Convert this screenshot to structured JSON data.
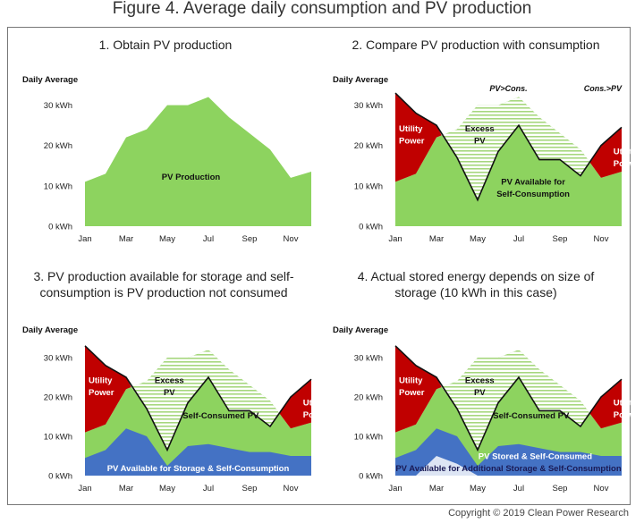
{
  "figure_title": "Figure 4. Average daily consumption and PV production",
  "copyright": "Copyright © 2019 Clean Power Research",
  "colors": {
    "pv": "#8dd35f",
    "utility": "#c00000",
    "excess_stripe": "#a6d77e",
    "storage": "#4472c4",
    "stored_light": "#dde5f4",
    "consumption_line": "#111111"
  },
  "chart_data": [
    {
      "type": "area",
      "title": "1. Obtain PV production",
      "ylabel": "Daily Average",
      "ylim": [
        0,
        35
      ],
      "y_ticks": [
        "0 kWh",
        "10 kWh",
        "20 kWh",
        "30 kWh"
      ],
      "x_tick_labels": [
        "Jan",
        "Mar",
        "May",
        "Jul",
        "Sep",
        "Nov"
      ],
      "x": [
        "Jan",
        "Feb",
        "Mar",
        "Apr",
        "May",
        "Jun",
        "Jul",
        "Aug",
        "Sep",
        "Oct",
        "Nov",
        "Dec"
      ],
      "series": [
        {
          "values": [
            11,
            13,
            22,
            24,
            30,
            30,
            32,
            27,
            23,
            19,
            12,
            13.5
          ]
        }
      ],
      "annotations": [
        "PV Production"
      ]
    },
    {
      "type": "area",
      "title": "2. Compare PV production with consumption",
      "ylabel": "Daily Average",
      "ylim": [
        0,
        35
      ],
      "y_ticks": [
        "0 kWh",
        "10 kWh",
        "20 kWh",
        "30 kWh"
      ],
      "x_tick_labels": [
        "Jan",
        "Mar",
        "May",
        "Jul",
        "Sep",
        "Nov"
      ],
      "x": [
        "Jan",
        "Feb",
        "Mar",
        "Apr",
        "May",
        "Jun",
        "Jul",
        "Aug",
        "Sep",
        "Oct",
        "Nov",
        "Dec"
      ],
      "series": [
        {
          "values": [
            11,
            13,
            22,
            24,
            30,
            30,
            32,
            27,
            23,
            19,
            12,
            13.5
          ]
        },
        {
          "values": [
            33,
            28,
            25,
            17,
            6.5,
            18.5,
            25,
            16.5,
            16.5,
            12.5,
            20,
            24.5
          ]
        }
      ],
      "annotations": [
        "Cons.>PV",
        "PV>Cons.",
        "Cons.>PV",
        "Utility Power",
        "Excess PV",
        "PV Available for Self-Consumption",
        "Utility Power"
      ]
    },
    {
      "type": "area",
      "title": "3. PV production available for storage and self-consumption is PV production not consumed",
      "ylabel": "Daily Average",
      "ylim": [
        0,
        35
      ],
      "y_ticks": [
        "0 kWh",
        "10 kWh",
        "20 kWh",
        "30 kWh"
      ],
      "x_tick_labels": [
        "Jan",
        "Mar",
        "May",
        "Jul",
        "Sep",
        "Nov"
      ],
      "x": [
        "Jan",
        "Feb",
        "Mar",
        "Apr",
        "May",
        "Jun",
        "Jul",
        "Aug",
        "Sep",
        "Oct",
        "Nov",
        "Dec"
      ],
      "series": [
        {
          "values": [
            11,
            13,
            22,
            24,
            30,
            30,
            32,
            27,
            23,
            19,
            12,
            13.5
          ]
        },
        {
          "values": [
            33,
            28,
            25,
            17,
            6.5,
            18.5,
            25,
            16.5,
            16.5,
            12.5,
            20,
            24.5
          ]
        },
        {
          "values": [
            4.5,
            6.5,
            12,
            10,
            2.5,
            7.5,
            8,
            7,
            6,
            6,
            5,
            5
          ]
        }
      ],
      "annotations": [
        "Utility Power",
        "Excess PV",
        "Self-Consumed PV",
        "PV Available for Storage & Self-Consumption",
        "Utility Power"
      ]
    },
    {
      "type": "area",
      "title": "4. Actual stored energy depends on size of storage (10 kWh in this case)",
      "ylabel": "Daily Average",
      "ylim": [
        0,
        35
      ],
      "y_ticks": [
        "0 kWh",
        "10 kWh",
        "20 kWh",
        "30 kWh"
      ],
      "x_tick_labels": [
        "Jan",
        "Mar",
        "May",
        "Jul",
        "Sep",
        "Nov"
      ],
      "x": [
        "Jan",
        "Feb",
        "Mar",
        "Apr",
        "May",
        "Jun",
        "Jul",
        "Aug",
        "Sep",
        "Oct",
        "Nov",
        "Dec"
      ],
      "series": [
        {
          "values": [
            11,
            13,
            22,
            24,
            30,
            30,
            32,
            27,
            23,
            19,
            12,
            13.5
          ]
        },
        {
          "values": [
            33,
            28,
            25,
            17,
            6.5,
            18.5,
            25,
            16.5,
            16.5,
            12.5,
            20,
            24.5
          ]
        },
        {
          "values": [
            4.5,
            6.5,
            12,
            10,
            2.5,
            7.5,
            8,
            7,
            6,
            6,
            5,
            5
          ]
        },
        {
          "values": [
            0,
            0,
            5,
            3,
            0,
            0,
            0,
            0,
            0,
            0,
            0,
            0
          ]
        }
      ],
      "annotations": [
        "Utility Power",
        "Excess PV",
        "Self-Consumed PV",
        "PV Stored & Self-Consumed",
        "PV Available for Additional Storage & Self-Consumption",
        "Utility Power"
      ]
    }
  ]
}
